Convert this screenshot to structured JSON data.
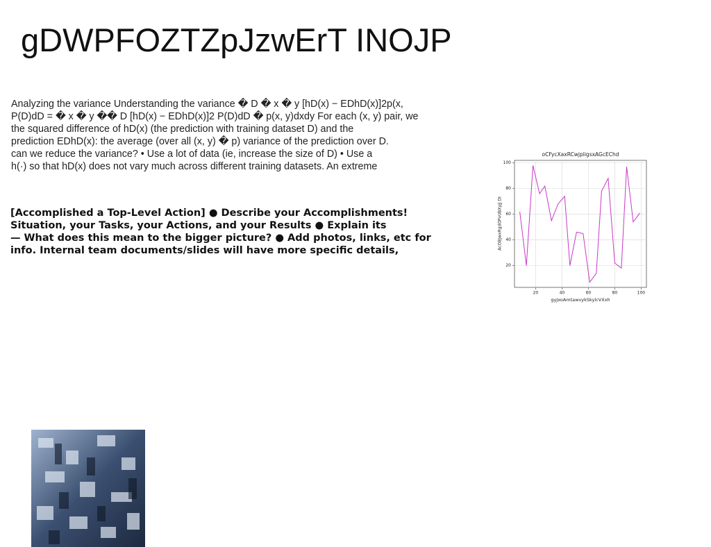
{
  "title": "gDWPFOZTZpJzwErT INOJP",
  "paragraph": [
    "Analyzing the variance Understanding the variance � D � x � y [hD(x) − EDhD(x)]2p(x,",
    "P(D)dD = � x � y �� D [hD(x) − EDhD(x)]2 P(D)dD � p(x, y)dxdy For each (x, y) pair, we",
    "the squared difference of hD(x) (the prediction with training dataset D) and the",
    "prediction EDhD(x): the average (over all (x, y) � p) variance of the prediction over D.",
    "can we reduce the variance? • Use a lot of data (ie, increase the size of D) • Use a",
    "h(·) so that hD(x) does not vary much across different training datasets. An extreme"
  ],
  "highlights": [
    "[Accomplished a Top-Level Action] ● Describe your Accomplishments!",
    "Situation, your Tasks, your Actions, and your Results ● Explain its",
    "— What does this mean to the bigger picture? ● Add photos, links, etc for",
    "info. Internal team documents/slides will have more specific details,"
  ],
  "chart_data": {
    "type": "line",
    "title": "oCFycXaxRCwjpligsxAGcEChd",
    "x_label": "gyJxoAmtawvykSkylcVXxh",
    "y_label": "AcOBJwxRgdOPvUbXyjJ DI",
    "x": [
      8,
      13,
      18,
      23,
      27,
      32,
      37,
      42,
      46,
      51,
      56,
      61,
      66,
      70,
      75,
      80,
      85,
      89,
      94,
      99
    ],
    "series": [
      {
        "color": "#c837c8",
        "values": [
          62,
          20,
          98,
          76,
          82,
          55,
          68,
          74,
          20,
          46,
          45,
          7,
          14,
          78,
          88,
          22,
          18,
          97,
          54,
          61
        ]
      }
    ],
    "xlim": [
      4,
      104
    ],
    "ylim": [
      3,
      102
    ],
    "xticks": [
      20,
      40,
      60,
      80,
      100
    ],
    "yticks": [
      20,
      40,
      60,
      80,
      100
    ],
    "grid": true
  }
}
